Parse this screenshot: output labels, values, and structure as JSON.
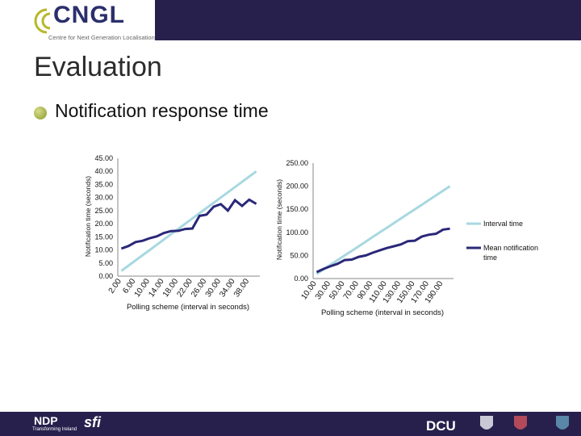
{
  "header": {
    "logo_text": "CNGL",
    "logo_tagline": "Centre for Next Generation Localisation"
  },
  "slide": {
    "title": "Evaluation",
    "bullet": "Notification response time"
  },
  "legend": {
    "interval": "Interval time",
    "mean": "Mean notification time"
  },
  "colors": {
    "interval_line": "#a8d8e0",
    "mean_line": "#2a2878",
    "header_band": "#27204d"
  },
  "chart_data": [
    {
      "type": "line",
      "title": "",
      "xlabel": "Polling scheme (interval in seconds)",
      "ylabel": "Notification time (seconds)",
      "ylim": [
        0,
        45
      ],
      "y_ticks": [
        "0.00",
        "5.00",
        "10.00",
        "15.00",
        "20.00",
        "25.00",
        "30.00",
        "35.00",
        "40.00",
        "45.00"
      ],
      "x_ticks": [
        "2.00",
        "6.00",
        "10.00",
        "14.00",
        "18.00",
        "22.00",
        "26.00",
        "30.00",
        "34.00",
        "38.00"
      ],
      "x": [
        2,
        4,
        6,
        8,
        10,
        12,
        14,
        16,
        18,
        20,
        22,
        24,
        26,
        28,
        30,
        32,
        34,
        36,
        38,
        40
      ],
      "series": [
        {
          "name": "Interval time",
          "values": [
            2,
            4,
            6,
            8,
            10,
            12,
            14,
            16,
            18,
            20,
            22,
            24,
            26,
            28,
            30,
            32,
            34,
            36,
            38,
            40
          ]
        },
        {
          "name": "Mean notification time",
          "values": [
            10.5,
            11.5,
            13,
            13.5,
            14.5,
            15.2,
            16.5,
            17.2,
            17.3,
            18,
            18.2,
            23,
            23.5,
            26.5,
            27.5,
            25,
            29,
            26.8,
            29.2,
            27.6
          ]
        }
      ]
    },
    {
      "type": "line",
      "title": "",
      "xlabel": "Polling scheme (interval in seconds)",
      "ylabel": "Notification time (seconds)",
      "ylim": [
        0,
        250
      ],
      "y_ticks": [
        "0.00",
        "50.00",
        "100.00",
        "150.00",
        "200.00",
        "250.00"
      ],
      "x_ticks": [
        "10.00",
        "30.00",
        "50.00",
        "70.00",
        "90.00",
        "110.00",
        "130.00",
        "150.00",
        "170.00",
        "190.00"
      ],
      "x": [
        10,
        20,
        30,
        40,
        50,
        60,
        70,
        80,
        90,
        100,
        110,
        120,
        130,
        140,
        150,
        160,
        170,
        180,
        190,
        200
      ],
      "series": [
        {
          "name": "Interval time",
          "values": [
            10,
            20,
            30,
            40,
            50,
            60,
            70,
            80,
            90,
            100,
            110,
            120,
            130,
            140,
            150,
            160,
            170,
            180,
            190,
            200
          ]
        },
        {
          "name": "Mean notification time",
          "values": [
            14,
            21,
            27,
            32,
            40,
            41,
            47,
            50,
            56,
            61,
            66,
            70,
            74,
            81,
            82,
            91,
            95,
            97,
            106,
            108
          ]
        }
      ]
    }
  ],
  "footer": {
    "ndp": "NDP",
    "ndp_sub": "Transforming Ireland",
    "sfi": "sfi",
    "dcu": "DCU"
  }
}
